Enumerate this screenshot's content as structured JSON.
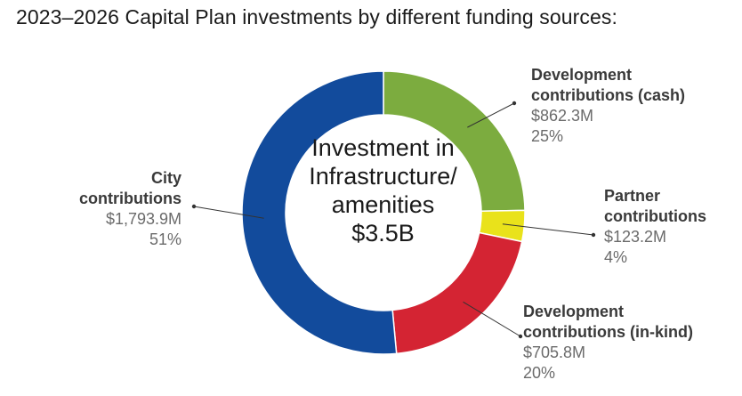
{
  "chart_data": {
    "type": "pie",
    "title": "2023–2026 Capital Plan investments by different funding sources:",
    "center_label": "Investment in Infrastructure/ amenities",
    "center_value": "$3.5B",
    "slices": [
      {
        "label": "Development contributions (cash)",
        "label_lines": [
          "Development",
          "contributions (cash)"
        ],
        "value": 862.3,
        "amount": "$862.3M",
        "percent": "25%",
        "color": "#7cac3f"
      },
      {
        "label": "Partner contributions",
        "label_lines": [
          "Partner",
          "contributions"
        ],
        "value": 123.2,
        "amount": "$123.2M",
        "percent": "4%",
        "color": "#e9e21b"
      },
      {
        "label": "Development contributions (in-kind)",
        "label_lines": [
          "Development",
          "contributions (in-kind)"
        ],
        "value": 705.8,
        "amount": "$705.8M",
        "percent": "20%",
        "color": "#d42433"
      },
      {
        "label": "City contributions",
        "label_lines": [
          "City",
          "contributions"
        ],
        "value": 1793.9,
        "amount": "$1,793.9M",
        "percent": "51%",
        "color": "#124b9c"
      }
    ]
  }
}
